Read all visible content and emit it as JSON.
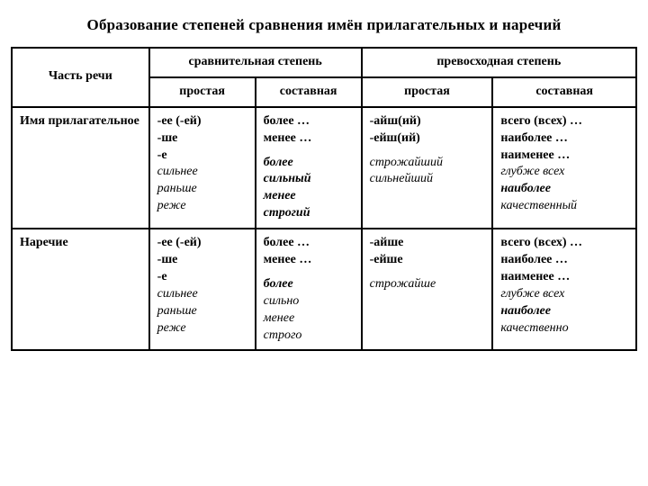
{
  "title": "Образование степеней сравнения имён прилагательных и наречий",
  "headers": {
    "part_of_speech": "Часть речи",
    "comparative": "сравнительная степень",
    "superlative": "превосходная степень",
    "simple": "простая",
    "compound": "составная"
  },
  "rows": [
    {
      "label": "Имя прилагательное",
      "cells": {
        "comp_simple": [
          {
            "t": "-ее (-ей)",
            "s": "b"
          },
          {
            "t": "-ше",
            "s": "b"
          },
          {
            "t": "-е",
            "s": "b"
          },
          {
            "t": "сильнее",
            "s": "i"
          },
          {
            "t": "раньше",
            "s": "i"
          },
          {
            "t": "реже",
            "s": "i"
          }
        ],
        "comp_compound": [
          {
            "t": "более …",
            "s": "b"
          },
          {
            "t": "менее …",
            "s": "b"
          },
          {
            "gap": true
          },
          {
            "t": "более",
            "s": "bi"
          },
          {
            "t": "сильный",
            "s": "bi"
          },
          {
            "t": "менее",
            "s": "bi"
          },
          {
            "t": "строгий",
            "s": "bi"
          }
        ],
        "sup_simple": [
          {
            "t": "-айш(ий)",
            "s": "b"
          },
          {
            "t": "-ейш(ий)",
            "s": "b"
          },
          {
            "gap": true
          },
          {
            "t": "строжайший",
            "s": "i"
          },
          {
            "t": "сильнейший",
            "s": "i"
          }
        ],
        "sup_compound": [
          {
            "t": "всего (всех) …",
            "s": "b"
          },
          {
            "t": "наиболее …",
            "s": "b"
          },
          {
            "t": "наименее …",
            "s": "b"
          },
          {
            "t": "глубже всех",
            "s": "i"
          },
          {
            "t": "наиболее",
            "s": "bi"
          },
          {
            "t": "качественный",
            "s": "i"
          }
        ]
      }
    },
    {
      "label": "Наречие",
      "cells": {
        "comp_simple": [
          {
            "t": "-ее (-ей)",
            "s": "b"
          },
          {
            "t": "-ше",
            "s": "b"
          },
          {
            "t": "-е",
            "s": "b"
          },
          {
            "t": "сильнее",
            "s": "i"
          },
          {
            "t": "раньше",
            "s": "i"
          },
          {
            "t": "реже",
            "s": "i"
          }
        ],
        "comp_compound": [
          {
            "t": "более …",
            "s": "b"
          },
          {
            "t": "менее …",
            "s": "b"
          },
          {
            "gap": true
          },
          {
            "t": "более",
            "s": "bi"
          },
          {
            "t": "сильно",
            "s": "i"
          },
          {
            "t": "менее",
            "s": "i"
          },
          {
            "t": "строго",
            "s": "i"
          }
        ],
        "sup_simple": [
          {
            "t": "-айше",
            "s": "b"
          },
          {
            "t": "-ейше",
            "s": "b"
          },
          {
            "gap": true
          },
          {
            "t": "строжайше",
            "s": "i"
          }
        ],
        "sup_compound": [
          {
            "t": "всего (всех) …",
            "s": "b"
          },
          {
            "t": "наиболее …",
            "s": "b"
          },
          {
            "t": "наименее …",
            "s": "b"
          },
          {
            "t": "глубже всех",
            "s": "i"
          },
          {
            "t": "наиболее",
            "s": "bi"
          },
          {
            "t": "качественно",
            "s": "i"
          }
        ]
      }
    }
  ]
}
